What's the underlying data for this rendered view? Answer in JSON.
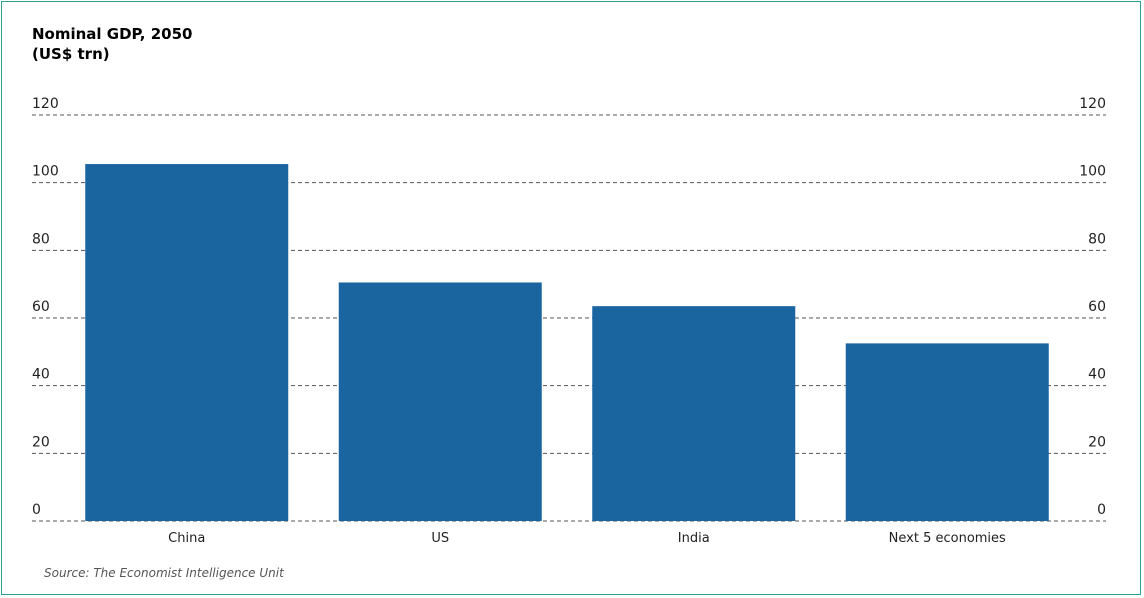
{
  "chart_data": {
    "type": "bar",
    "title": "Nominal GDP, 2050",
    "subtitle": "(US$ trn)",
    "categories": [
      "China",
      "US",
      "India",
      "Next 5 economies"
    ],
    "values": [
      105.5,
      70.5,
      63.5,
      52.5
    ],
    "ylim": [
      0,
      120
    ],
    "yticks": [
      0,
      20,
      40,
      60,
      80,
      100,
      120
    ],
    "xlabel": "",
    "ylabel": "",
    "grid": true,
    "bar_color": "#1a64a0",
    "source": "Source: The Economist Intelligence Unit"
  }
}
